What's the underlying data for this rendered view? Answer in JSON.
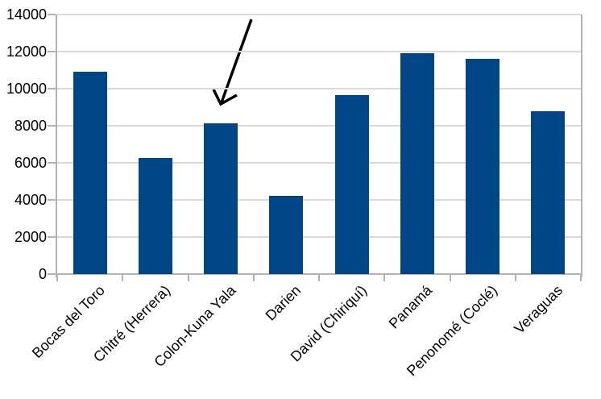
{
  "chart_data": {
    "type": "bar",
    "title": "",
    "xlabel": "",
    "ylabel": "",
    "categories": [
      "Bocas del Toro",
      "Chitré (Herrera)",
      "Colon-Kuna Yala",
      "Darien",
      "David (Chiriquí)",
      "Panamá",
      "Penonomé (Coclé)",
      "Veraguas"
    ],
    "values": [
      10900,
      6250,
      8150,
      4200,
      9650,
      11900,
      11600,
      8800
    ],
    "ylim": [
      0,
      14000
    ],
    "ytick_step": 2000,
    "ytick_labels": [
      "0",
      "2000",
      "4000",
      "6000",
      "8000",
      "10000",
      "12000",
      "14000"
    ],
    "grid": true,
    "legend": "none"
  },
  "annotation": {
    "shape": "arrow",
    "points_to": "Colon-Kuna Yala"
  },
  "colors": {
    "bar": "#004586",
    "gridline": "#d9d9d9",
    "axis": "#b3b3b3",
    "text": "#000000",
    "background": "#ffffff",
    "arrow": "#000000"
  }
}
